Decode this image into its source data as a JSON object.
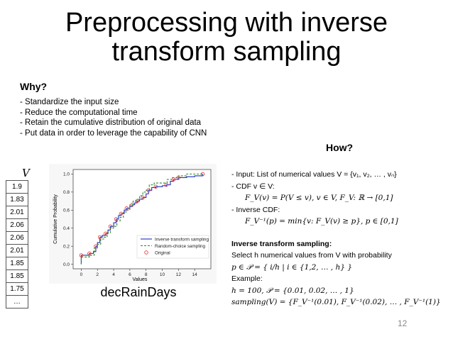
{
  "slide": {
    "title_line1": "Preprocessing with inverse",
    "title_line2": "transform sampling",
    "why_heading": "Why?",
    "why_items": [
      "- Standardize the input size",
      "- Reduce the computational time",
      "- Retain the cumulative distribution of original data",
      "- Put data in order to leverage the capability of CNN"
    ],
    "how_heading": "How?",
    "page_number": "12",
    "caption": "decRainDays"
  },
  "vector": {
    "label": "V",
    "values": [
      "1.9",
      "1.83",
      "2.01",
      "2.06",
      "2.06",
      "2.01",
      "1.85",
      "1.85",
      "1.75",
      "…"
    ]
  },
  "how": {
    "input_line": "- Input: List of numerical values V = {v₁, v₂, … , vₙ}",
    "cdf_label": "- CDF v ∈ V:",
    "cdf_formula": "F_V(v) = P(V ≤ v), v ∈ V, F_V: ℝ → [0,1]",
    "icdf_label": "- Inverse CDF:",
    "icdf_formula": "F_V⁻¹(p) = min{v: F_V(v) ≥ p}, p ∈ [0,1]",
    "its_heading": "Inverse transform sampling:",
    "its_desc": "Select h numerical values from V with probability",
    "prob_set": "p ∈ 𝒫 = { i/h | i ∈ {1,2, … , h} }",
    "example_label": "Example:",
    "example_params": "h = 100, 𝒫 = {0.01, 0.02, … , 1}",
    "example_sampling": "sampling(V) = {F_V⁻¹(0.01), F_V⁻¹(0.02), … , F_V⁻¹(1)}"
  },
  "chart_data": {
    "type": "line",
    "xlabel": "Values",
    "ylabel": "Cumulative Probability",
    "xlim": [
      -1,
      16
    ],
    "ylim": [
      -0.05,
      1.05
    ],
    "x_ticks": [
      0,
      2,
      4,
      6,
      8,
      10,
      12,
      14
    ],
    "y_ticks": [
      0.0,
      0.2,
      0.4,
      0.6,
      0.8,
      1.0
    ],
    "grid": false,
    "legend_position": "lower-right",
    "series": [
      {
        "name": "Inverse transform sampling",
        "style": "solid",
        "color": "#1f2fbf",
        "x": [
          0,
          0,
          1,
          1.5,
          1.8,
          2,
          2.3,
          2.6,
          3,
          3.3,
          3.6,
          4,
          4.3,
          4.6,
          4.9,
          5.3,
          5.6,
          6,
          6.3,
          6.6,
          6.9,
          7.2,
          7.6,
          8,
          8.3,
          8.7,
          9.2,
          10,
          10.5,
          11,
          11.4,
          12,
          13,
          14,
          15
        ],
        "y": [
          0.0,
          0.1,
          0.12,
          0.14,
          0.2,
          0.24,
          0.3,
          0.32,
          0.34,
          0.38,
          0.42,
          0.46,
          0.5,
          0.54,
          0.56,
          0.6,
          0.62,
          0.64,
          0.66,
          0.68,
          0.7,
          0.72,
          0.74,
          0.78,
          0.82,
          0.85,
          0.86,
          0.87,
          0.88,
          0.92,
          0.94,
          0.96,
          0.97,
          0.98,
          1.0
        ]
      },
      {
        "name": "Random-choice sampling",
        "style": "dashed",
        "color": "#2a8a2a",
        "x": [
          0,
          0,
          1,
          1.6,
          2,
          2.4,
          2.8,
          3.2,
          3.6,
          4,
          4.4,
          4.8,
          5.2,
          5.6,
          6,
          6.4,
          6.8,
          7.2,
          7.6,
          8,
          8.4,
          9,
          10,
          10.6,
          11.2,
          12,
          13,
          14,
          15
        ],
        "y": [
          0.0,
          0.08,
          0.1,
          0.18,
          0.22,
          0.28,
          0.3,
          0.35,
          0.4,
          0.42,
          0.48,
          0.52,
          0.58,
          0.6,
          0.66,
          0.7,
          0.72,
          0.76,
          0.8,
          0.82,
          0.88,
          0.9,
          0.9,
          0.94,
          0.96,
          0.98,
          1.0,
          1.0,
          1.0
        ]
      },
      {
        "name": "Original",
        "style": "markers",
        "color": "#e03030",
        "x": [
          0,
          1,
          1.8,
          2.3,
          3,
          3.6,
          4.3,
          4.9,
          5.6,
          6.3,
          6.9,
          7.6,
          8.3,
          9.2,
          10.5,
          11.4,
          12,
          15
        ],
        "y": [
          0.1,
          0.12,
          0.2,
          0.3,
          0.34,
          0.42,
          0.5,
          0.56,
          0.62,
          0.66,
          0.7,
          0.74,
          0.82,
          0.86,
          0.88,
          0.94,
          0.96,
          1.0
        ]
      }
    ]
  }
}
